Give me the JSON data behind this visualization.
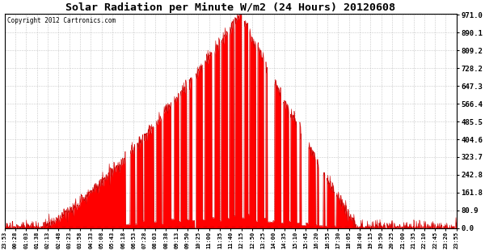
{
  "title": "Solar Radiation per Minute W/m2 (24 Hours) 20120608",
  "copyright": "Copyright 2012 Cartronics.com",
  "ymin": 0.0,
  "ymax": 971.0,
  "yticks": [
    0.0,
    80.9,
    161.8,
    242.8,
    323.7,
    404.6,
    485.5,
    566.4,
    647.3,
    728.2,
    809.2,
    890.1,
    971.0
  ],
  "fill_color": "#ff0000",
  "line_color": "#cc0000",
  "background_color": "#ffffff",
  "grid_color": "#bbbbbb",
  "border_color": "#000000",
  "dashed_line_color": "#dd0000",
  "xtick_labels": [
    "23:53",
    "00:28",
    "01:03",
    "01:38",
    "02:13",
    "02:48",
    "03:23",
    "03:58",
    "04:33",
    "05:08",
    "05:43",
    "06:18",
    "06:53",
    "07:28",
    "08:03",
    "08:38",
    "09:13",
    "09:50",
    "10:25",
    "11:00",
    "11:35",
    "11:40",
    "12:15",
    "12:50",
    "13:25",
    "14:00",
    "14:35",
    "15:10",
    "15:45",
    "16:20",
    "16:55",
    "17:30",
    "18:05",
    "18:40",
    "19:15",
    "19:50",
    "20:25",
    "21:00",
    "21:35",
    "22:10",
    "22:45",
    "23:20",
    "23:55"
  ]
}
